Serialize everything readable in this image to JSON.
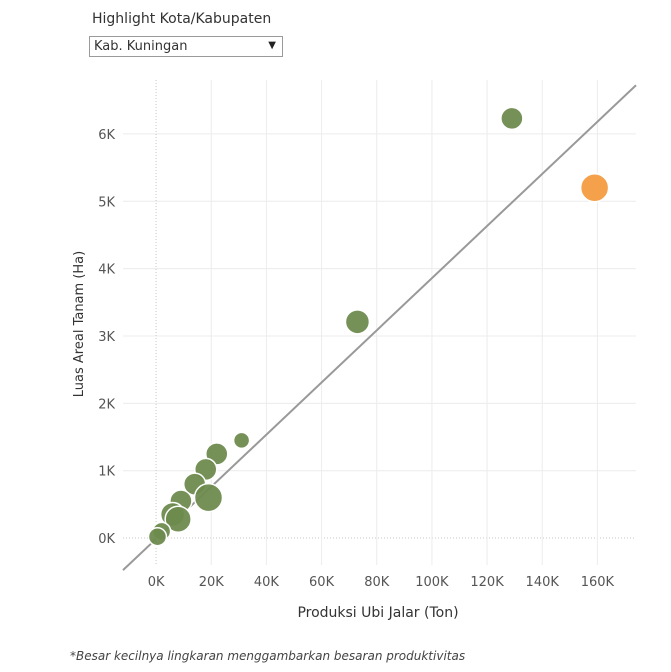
{
  "filter": {
    "label": "Highlight Kota/Kabupaten",
    "selected": "Kab. Kuningan"
  },
  "chart_data": {
    "type": "scatter",
    "title": "",
    "xlabel": "Produksi Ubi Jalar (Ton)",
    "ylabel": "Luas Areal Tanam (Ha)",
    "xlim": [
      -12000,
      174000
    ],
    "ylim": [
      -400,
      6800
    ],
    "x_ticks": [
      0,
      20000,
      40000,
      60000,
      80000,
      100000,
      120000,
      140000,
      160000
    ],
    "x_tick_labels": [
      "0K",
      "20K",
      "40K",
      "60K",
      "80K",
      "100K",
      "120K",
      "140K",
      "160K"
    ],
    "y_ticks": [
      0,
      1000,
      2000,
      3000,
      4000,
      5000,
      6000
    ],
    "y_tick_labels": [
      "0K",
      "1K",
      "2K",
      "3K",
      "4K",
      "5K",
      "6K"
    ],
    "grid": true,
    "colors": {
      "default": "#6e8b4e",
      "highlight": "#f5a04a",
      "trend": "#999999",
      "grid": "#ececec"
    },
    "trend_line": {
      "slope": 0.0387,
      "intercept": -12
    },
    "points": [
      {
        "x": 129000,
        "y": 6230,
        "size": 22,
        "highlight": false
      },
      {
        "x": 159000,
        "y": 5200,
        "size": 28,
        "highlight": true
      },
      {
        "x": 73000,
        "y": 3210,
        "size": 24,
        "highlight": false
      },
      {
        "x": 31000,
        "y": 1450,
        "size": 16,
        "highlight": false
      },
      {
        "x": 22000,
        "y": 1250,
        "size": 22,
        "highlight": false
      },
      {
        "x": 18000,
        "y": 1020,
        "size": 22,
        "highlight": false
      },
      {
        "x": 14000,
        "y": 800,
        "size": 22,
        "highlight": false
      },
      {
        "x": 19000,
        "y": 600,
        "size": 28,
        "highlight": false
      },
      {
        "x": 9000,
        "y": 550,
        "size": 22,
        "highlight": false
      },
      {
        "x": 6000,
        "y": 350,
        "size": 24,
        "highlight": false
      },
      {
        "x": 8000,
        "y": 280,
        "size": 26,
        "highlight": false
      },
      {
        "x": 2000,
        "y": 100,
        "size": 18,
        "highlight": false
      },
      {
        "x": 500,
        "y": 20,
        "size": 18,
        "highlight": false
      }
    ]
  },
  "footnote": "*Besar kecilnya lingkaran menggambarkan besaran produktivitas"
}
